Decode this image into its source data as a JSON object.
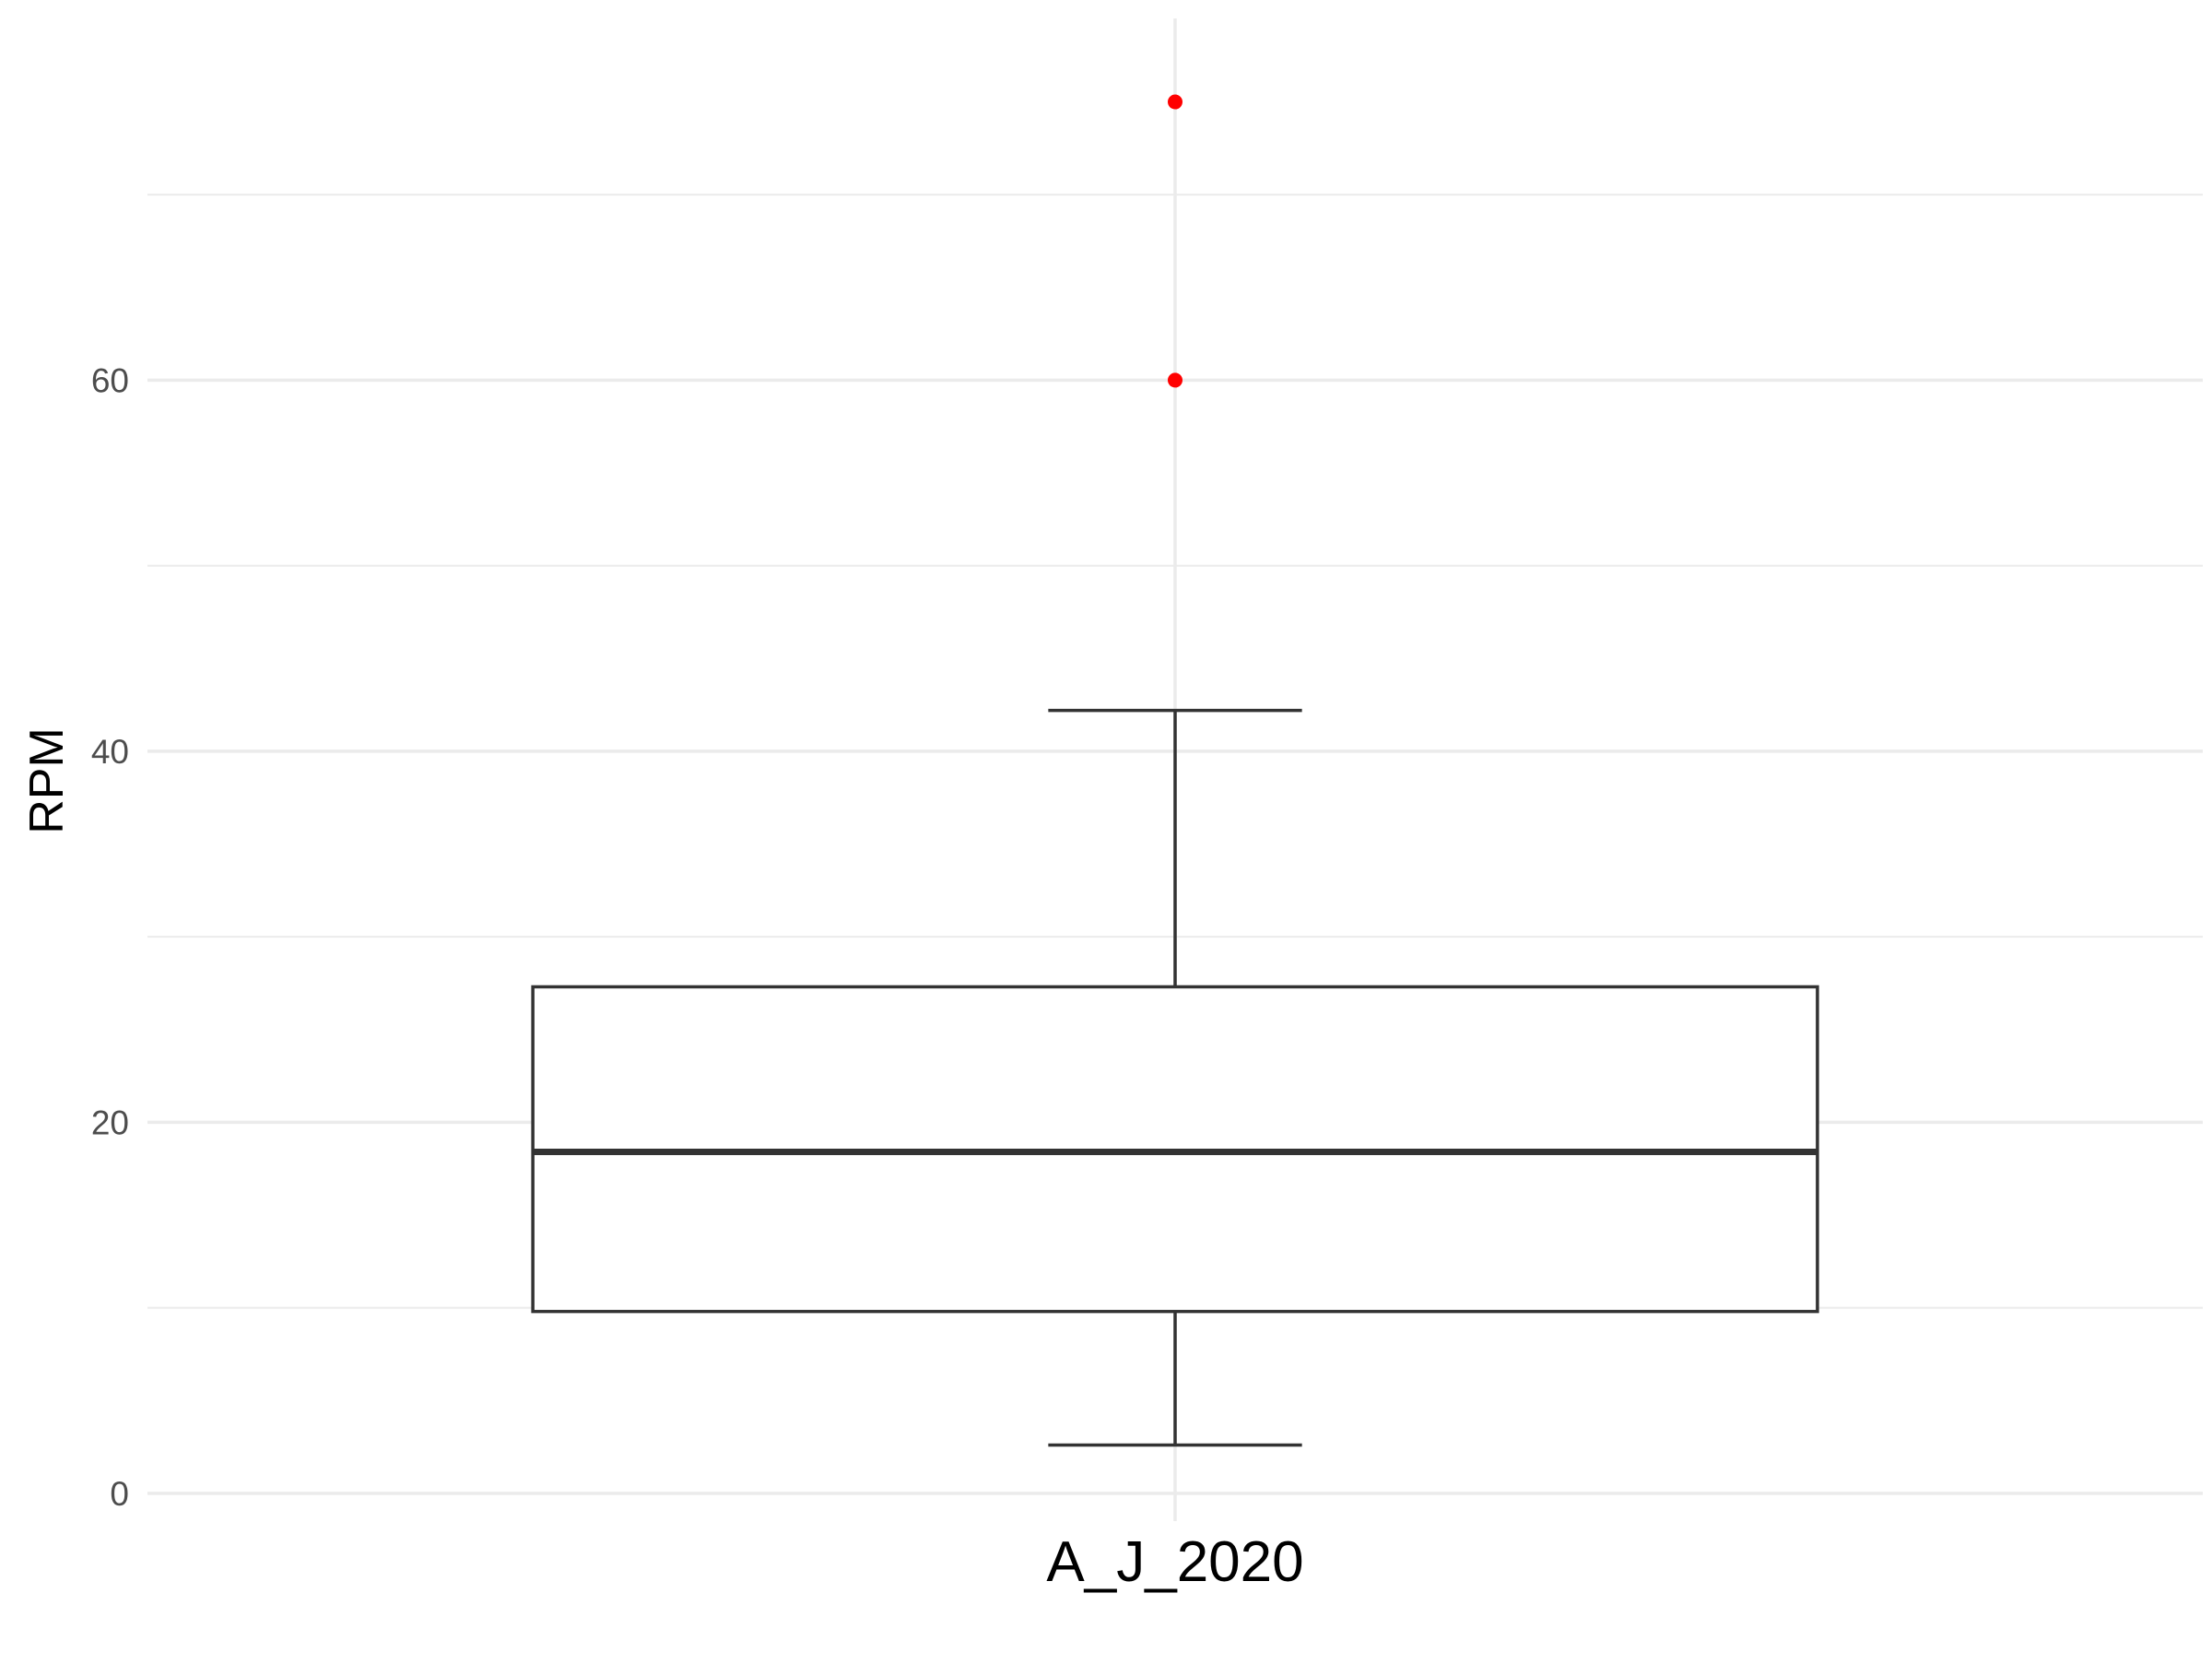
{
  "chart_data": {
    "type": "box",
    "title": "",
    "xlabel": "",
    "ylabel": "RPM",
    "ylim": [
      -1.5,
      79.5
    ],
    "y_ticks": [
      0,
      20,
      40,
      60
    ],
    "y_tick_labels": [
      "0",
      "20",
      "40",
      "60"
    ],
    "grid": true,
    "categories": [
      "A_J_2020"
    ],
    "boxes": [
      {
        "category": "A_J_2020",
        "whisker_low": 2.6,
        "q1": 9.8,
        "median": 18.4,
        "q3": 27.3,
        "whisker_high": 42.2,
        "outliers": [
          60.0,
          75.0
        ]
      }
    ],
    "colors": {
      "box_stroke": "#333333",
      "outlier": "#ff0000",
      "grid": "#ebebeb",
      "tick_text": "#4d4d4d",
      "axis_title": "#000000"
    }
  }
}
